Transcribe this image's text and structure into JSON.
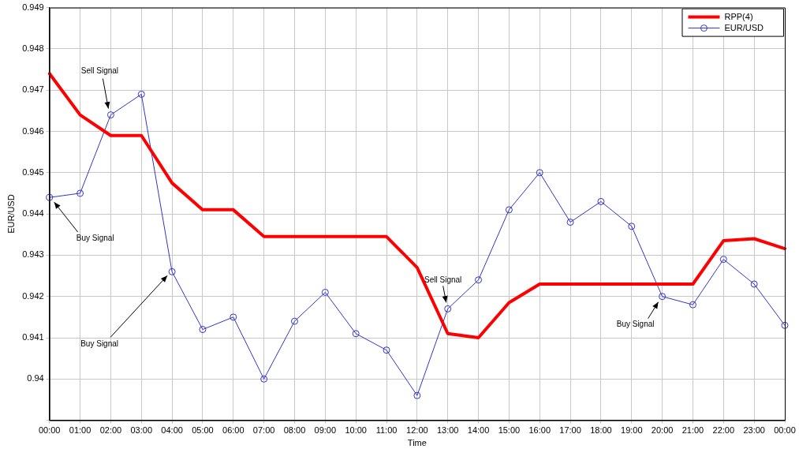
{
  "chart_data": {
    "type": "line",
    "xlabel": "Time",
    "ylabel": "EUR/USD",
    "categories": [
      "00:00",
      "01:00",
      "02:00",
      "03:00",
      "04:00",
      "05:00",
      "06:00",
      "07:00",
      "08:00",
      "09:00",
      "10:00",
      "11:00",
      "12:00",
      "13:00",
      "14:00",
      "15:00",
      "16:00",
      "17:00",
      "18:00",
      "19:00",
      "20:00",
      "21:00",
      "22:00",
      "23:00",
      "00:00"
    ],
    "series": [
      {
        "name": "RPP(4)",
        "color": "#ff0000",
        "values": [
          0.9474,
          0.9464,
          0.9459,
          0.9459,
          0.94475,
          0.9441,
          0.9441,
          0.94345,
          0.94345,
          0.94345,
          0.94345,
          0.94345,
          0.9427,
          0.9411,
          0.941,
          0.94185,
          0.9423,
          0.9423,
          0.9423,
          0.9423,
          0.9423,
          0.9423,
          0.94335,
          0.9434,
          0.94316
        ]
      },
      {
        "name": "EUR/USD",
        "color": "#3333cc",
        "marker": "circle",
        "values": [
          0.9444,
          0.9445,
          0.9464,
          0.9469,
          0.9426,
          0.9412,
          0.9415,
          0.94,
          0.9414,
          0.9421,
          0.9411,
          0.9407,
          0.9396,
          0.9417,
          0.9424,
          0.9441,
          0.945,
          0.9438,
          0.9443,
          0.9437,
          0.942,
          0.9418,
          0.9429,
          0.9423,
          0.9413
        ]
      }
    ],
    "ylim": [
      0.939,
      0.949
    ],
    "yticks": [
      {
        "value": 0.939,
        "label": null
      },
      0.94,
      0.941,
      0.942,
      0.943,
      0.944,
      0.945,
      0.946,
      0.947,
      0.948,
      0.949
    ],
    "grid": true,
    "legend": "top right",
    "line_style": "solid",
    "annotations": [
      {
        "text": "Sell Signal",
        "x": "02:00",
        "y": 0.9464
      },
      {
        "text": "Buy Signal",
        "x": "00:00",
        "y": 0.9444
      },
      {
        "text": "Buy Signal",
        "x": "04:00",
        "y": 0.9426
      },
      {
        "text": "Sell Signal",
        "x": "13:00",
        "y": 0.9417
      },
      {
        "text": "Buy Signal",
        "x": "20:00",
        "y": 0.942
      }
    ]
  }
}
